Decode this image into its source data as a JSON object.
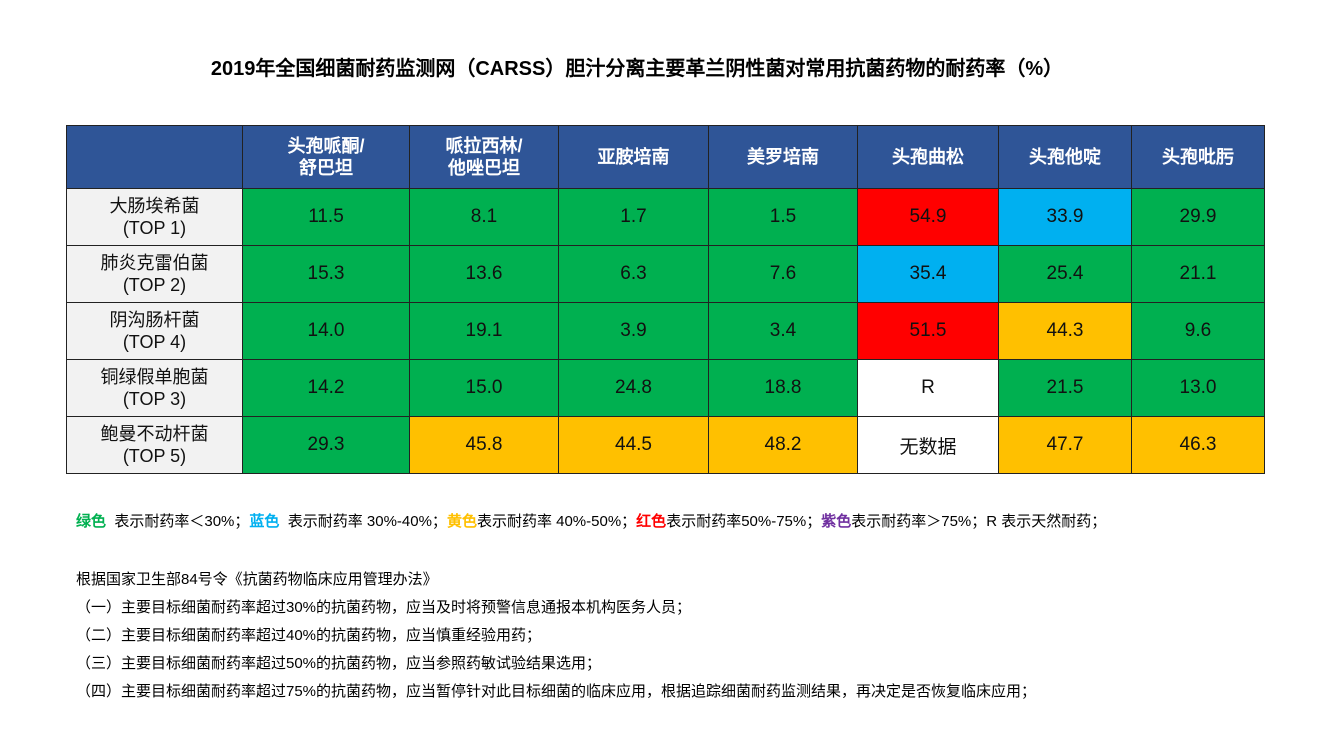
{
  "title": "2019年全国细菌耐药监测网（CARSS）胆汁分离主要革兰阴性菌对常用抗菌药物的耐药率（%）",
  "table": {
    "header_bg": "#2f5597",
    "columns": [
      "头孢哌酮/\n舒巴坦",
      "哌拉西林/\n他唑巴坦",
      "亚胺培南",
      "美罗培南",
      "头孢曲松",
      "头孢他啶",
      "头孢吡肟"
    ],
    "rows": [
      {
        "name": "大肠埃希菌",
        "rank": "(TOP 1)",
        "cells": [
          {
            "text": "11.5",
            "color": "#00b050"
          },
          {
            "text": "8.1",
            "color": "#00b050"
          },
          {
            "text": "1.7",
            "color": "#00b050"
          },
          {
            "text": "1.5",
            "color": "#00b050"
          },
          {
            "text": "54.9",
            "color": "#ff0000"
          },
          {
            "text": "33.9",
            "color": "#00b0f0"
          },
          {
            "text": "29.9",
            "color": "#00b050"
          }
        ]
      },
      {
        "name": "肺炎克雷伯菌",
        "rank": "(TOP 2)",
        "cells": [
          {
            "text": "15.3",
            "color": "#00b050"
          },
          {
            "text": "13.6",
            "color": "#00b050"
          },
          {
            "text": "6.3",
            "color": "#00b050"
          },
          {
            "text": "7.6",
            "color": "#00b050"
          },
          {
            "text": "35.4",
            "color": "#00b0f0"
          },
          {
            "text": "25.4",
            "color": "#00b050"
          },
          {
            "text": "21.1",
            "color": "#00b050"
          }
        ]
      },
      {
        "name": "阴沟肠杆菌",
        "rank": "(TOP 4)",
        "cells": [
          {
            "text": "14.0",
            "color": "#00b050"
          },
          {
            "text": "19.1",
            "color": "#00b050"
          },
          {
            "text": "3.9",
            "color": "#00b050"
          },
          {
            "text": "3.4",
            "color": "#00b050"
          },
          {
            "text": "51.5",
            "color": "#ff0000"
          },
          {
            "text": "44.3",
            "color": "#ffc000"
          },
          {
            "text": "9.6",
            "color": "#00b050"
          }
        ]
      },
      {
        "name": "铜绿假单胞菌",
        "rank": "(TOP 3)",
        "cells": [
          {
            "text": "14.2",
            "color": "#00b050"
          },
          {
            "text": "15.0",
            "color": "#00b050"
          },
          {
            "text": "24.8",
            "color": "#00b050"
          },
          {
            "text": "18.8",
            "color": "#00b050"
          },
          {
            "text": "R",
            "color": "#ffffff"
          },
          {
            "text": "21.5",
            "color": "#00b050"
          },
          {
            "text": "13.0",
            "color": "#00b050"
          }
        ]
      },
      {
        "name": "鲍曼不动杆菌",
        "rank": "(TOP 5)",
        "cells": [
          {
            "text": "29.3",
            "color": "#00b050"
          },
          {
            "text": "45.8",
            "color": "#ffc000"
          },
          {
            "text": "44.5",
            "color": "#ffc000"
          },
          {
            "text": "48.2",
            "color": "#ffc000"
          },
          {
            "text": "无数据",
            "color": "#ffffff"
          },
          {
            "text": "47.7",
            "color": "#ffc000"
          },
          {
            "text": "46.3",
            "color": "#ffc000"
          }
        ]
      }
    ]
  },
  "legend": [
    {
      "term": "绿色",
      "color": "#00b050",
      "text": "  表示耐药率＜30%；"
    },
    {
      "term": "蓝色",
      "color": "#00b0f0",
      "text": "  表示耐药率 30%-40%；"
    },
    {
      "term": "黄色",
      "color": "#ffc000",
      "text": "表示耐药率 40%-50%；"
    },
    {
      "term": "红色",
      "color": "#ff0000",
      "text": "表示耐药率50%-75%；"
    },
    {
      "term": "紫色",
      "color": "#7030a0",
      "text": "表示耐药率＞75%；"
    },
    {
      "text": "R 表示天然耐药；"
    }
  ],
  "notes": {
    "title": "根据国家卫生部84号令《抗菌药物临床应用管理办法》",
    "items": [
      "（一）主要目标细菌耐药率超过30%的抗菌药物，应当及时将预警信息通报本机构医务人员；",
      "（二）主要目标细菌耐药率超过40%的抗菌药物，应当慎重经验用药；",
      "（三）主要目标细菌耐药率超过50%的抗菌药物，应当参照药敏试验结果选用；",
      "（四）主要目标细菌耐药率超过75%的抗菌药物，应当暂停针对此目标细菌的临床应用，根据追踪细菌耐药监测结果，再决定是否恢复临床应用；"
    ]
  }
}
